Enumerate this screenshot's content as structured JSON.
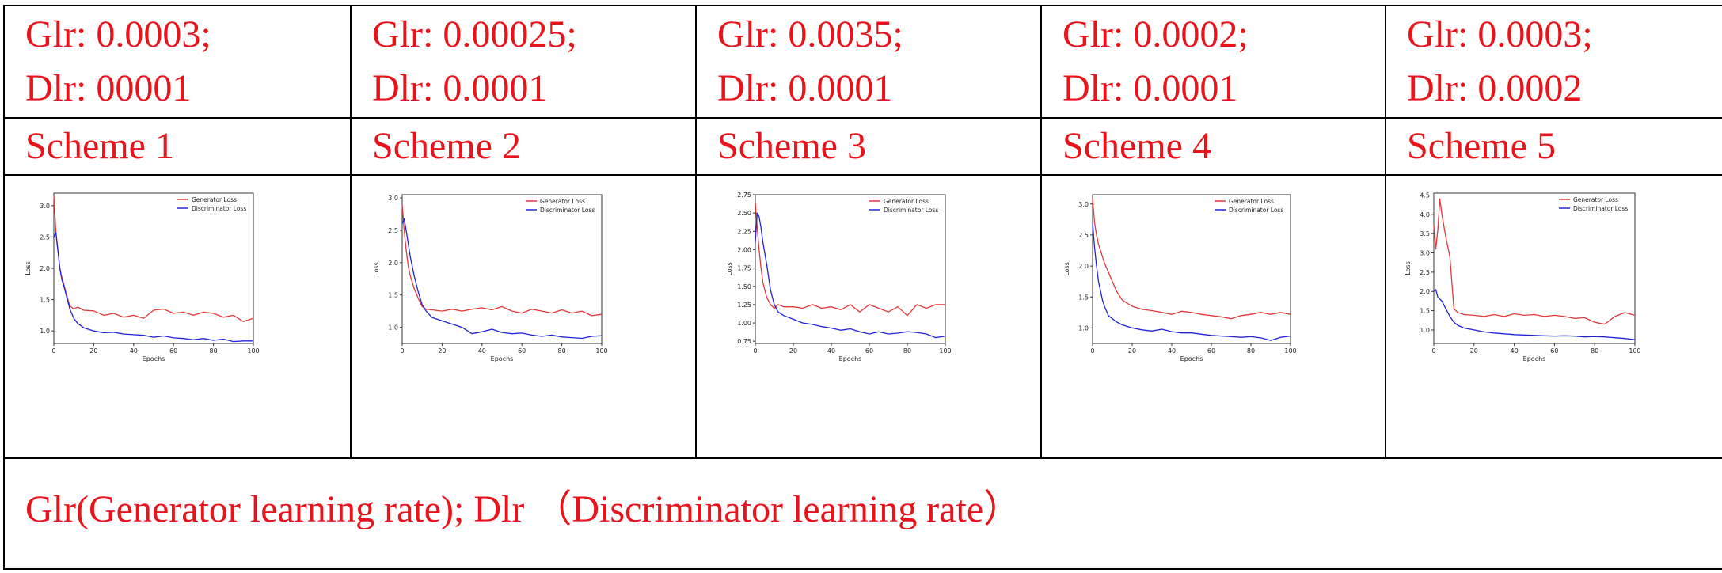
{
  "header_row": [
    {
      "glr": "Glr: 0.0003;",
      "dlr": "Dlr: 00001"
    },
    {
      "glr": "Glr: 0.00025;",
      "dlr": "Dlr: 0.0001"
    },
    {
      "glr": "Glr: 0.0035;",
      "dlr": "Dlr: 0.0001"
    },
    {
      "glr": "Glr: 0.0002;",
      "dlr": "Dlr: 0.0001"
    },
    {
      "glr": "Glr: 0.0003;",
      "dlr": "Dlr: 0.0002"
    }
  ],
  "scheme_row": [
    "Scheme 1",
    "Scheme 2",
    "Scheme 3",
    "Scheme 4",
    "Scheme 5"
  ],
  "footnote": "Glr(Generator learning rate); Dlr （Discriminator learning rate）",
  "colors": {
    "text": "#e8141c",
    "generator": "#e03a3a",
    "discriminator": "#2323d6",
    "grid_line": "#000000"
  },
  "chart_data": [
    {
      "type": "line",
      "title": "",
      "xlabel": "Epochs",
      "ylabel": "Loss",
      "xlim": [
        0,
        100
      ],
      "ylim": [
        0.8,
        3.2
      ],
      "xticks": [
        0,
        20,
        40,
        60,
        80,
        100
      ],
      "yticks": [
        1.0,
        1.5,
        2.0,
        2.5,
        3.0
      ],
      "ytick_labels": [
        "1.0",
        "1.5",
        "2.0",
        "2.5",
        "3.0"
      ],
      "x": [
        0,
        1,
        2,
        3,
        4,
        5,
        6,
        8,
        10,
        12,
        15,
        20,
        25,
        30,
        35,
        40,
        45,
        50,
        55,
        60,
        65,
        70,
        75,
        80,
        85,
        90,
        95,
        100
      ],
      "series": [
        {
          "name": "Generator Loss",
          "color": "#e03a3a",
          "values": [
            3.15,
            2.6,
            2.3,
            2.0,
            1.85,
            1.75,
            1.62,
            1.4,
            1.35,
            1.38,
            1.33,
            1.32,
            1.25,
            1.28,
            1.22,
            1.25,
            1.2,
            1.33,
            1.35,
            1.28,
            1.3,
            1.25,
            1.3,
            1.28,
            1.22,
            1.25,
            1.15,
            1.2
          ]
        },
        {
          "name": "Discriminator Loss",
          "color": "#2323d6",
          "values": [
            2.5,
            2.57,
            2.3,
            2.0,
            1.82,
            1.72,
            1.6,
            1.35,
            1.2,
            1.12,
            1.05,
            1.0,
            0.97,
            0.98,
            0.95,
            0.94,
            0.93,
            0.9,
            0.92,
            0.89,
            0.88,
            0.86,
            0.88,
            0.85,
            0.87,
            0.83,
            0.84,
            0.84
          ]
        }
      ]
    },
    {
      "type": "line",
      "title": "",
      "xlabel": "Epochs",
      "ylabel": "Loss",
      "xlim": [
        0,
        100
      ],
      "ylim": [
        0.75,
        3.05
      ],
      "xticks": [
        0,
        20,
        40,
        60,
        80,
        100
      ],
      "yticks": [
        1.0,
        1.5,
        2.0,
        2.5,
        3.0
      ],
      "ytick_labels": [
        "1.0",
        "1.5",
        "2.0",
        "2.5",
        "3.0"
      ],
      "x": [
        0,
        1,
        2,
        3,
        4,
        5,
        6,
        8,
        10,
        12,
        15,
        20,
        25,
        30,
        35,
        40,
        45,
        50,
        55,
        60,
        65,
        70,
        75,
        80,
        85,
        90,
        95,
        100
      ],
      "series": [
        {
          "name": "Generator Loss",
          "color": "#e03a3a",
          "values": [
            2.9,
            2.5,
            2.2,
            1.95,
            1.8,
            1.7,
            1.6,
            1.45,
            1.32,
            1.28,
            1.27,
            1.25,
            1.28,
            1.25,
            1.28,
            1.3,
            1.27,
            1.32,
            1.25,
            1.22,
            1.28,
            1.25,
            1.22,
            1.27,
            1.22,
            1.25,
            1.18,
            1.2
          ]
        },
        {
          "name": "Discriminator Loss",
          "color": "#2323d6",
          "values": [
            2.6,
            2.68,
            2.5,
            2.3,
            2.1,
            1.95,
            1.8,
            1.55,
            1.35,
            1.25,
            1.15,
            1.1,
            1.05,
            1.0,
            0.9,
            0.93,
            0.97,
            0.92,
            0.9,
            0.91,
            0.88,
            0.86,
            0.88,
            0.85,
            0.84,
            0.83,
            0.86,
            0.87
          ]
        }
      ]
    },
    {
      "type": "line",
      "title": "",
      "xlabel": "Epochs",
      "ylabel": "Loss",
      "xlim": [
        0,
        100
      ],
      "ylim": [
        0.72,
        2.75
      ],
      "xticks": [
        0,
        20,
        40,
        60,
        80,
        100
      ],
      "yticks": [
        0.75,
        1.0,
        1.25,
        1.5,
        1.75,
        2.0,
        2.25,
        2.5,
        2.75
      ],
      "ytick_labels": [
        "0.75",
        "1.00",
        "1.25",
        "1.50",
        "1.75",
        "2.00",
        "2.25",
        "2.50",
        "2.75"
      ],
      "x": [
        0,
        1,
        2,
        3,
        4,
        5,
        6,
        8,
        10,
        12,
        15,
        20,
        25,
        30,
        35,
        40,
        45,
        50,
        55,
        60,
        65,
        70,
        75,
        80,
        85,
        90,
        95,
        100
      ],
      "series": [
        {
          "name": "Generator Loss",
          "color": "#e03a3a",
          "values": [
            2.65,
            2.3,
            2.0,
            1.75,
            1.55,
            1.45,
            1.35,
            1.25,
            1.2,
            1.25,
            1.22,
            1.22,
            1.2,
            1.25,
            1.2,
            1.22,
            1.18,
            1.25,
            1.15,
            1.25,
            1.2,
            1.15,
            1.22,
            1.1,
            1.25,
            1.2,
            1.25,
            1.25
          ]
        },
        {
          "name": "Discriminator Loss",
          "color": "#2323d6",
          "values": [
            2.1,
            2.5,
            2.45,
            2.3,
            2.1,
            1.95,
            1.8,
            1.45,
            1.25,
            1.15,
            1.1,
            1.05,
            1.0,
            0.98,
            0.95,
            0.93,
            0.9,
            0.92,
            0.88,
            0.85,
            0.88,
            0.85,
            0.86,
            0.88,
            0.87,
            0.85,
            0.8,
            0.82
          ]
        }
      ]
    },
    {
      "type": "line",
      "title": "",
      "xlabel": "Epochs",
      "ylabel": "Loss",
      "xlim": [
        0,
        100
      ],
      "ylim": [
        0.75,
        3.15
      ],
      "xticks": [
        0,
        20,
        40,
        60,
        80,
        100
      ],
      "yticks": [
        1.0,
        1.5,
        2.0,
        2.5,
        3.0
      ],
      "ytick_labels": [
        "1.0",
        "1.5",
        "2.0",
        "2.5",
        "3.0"
      ],
      "x": [
        0,
        1,
        2,
        3,
        4,
        5,
        6,
        8,
        10,
        12,
        15,
        20,
        25,
        30,
        35,
        40,
        45,
        50,
        55,
        60,
        65,
        70,
        75,
        80,
        85,
        90,
        95,
        100
      ],
      "series": [
        {
          "name": "Generator Loss",
          "color": "#e03a3a",
          "values": [
            3.1,
            2.7,
            2.5,
            2.35,
            2.25,
            2.15,
            2.05,
            1.9,
            1.75,
            1.6,
            1.45,
            1.35,
            1.3,
            1.28,
            1.25,
            1.22,
            1.27,
            1.25,
            1.22,
            1.2,
            1.18,
            1.15,
            1.2,
            1.22,
            1.25,
            1.22,
            1.25,
            1.22
          ]
        },
        {
          "name": "Discriminator Loss",
          "color": "#2323d6",
          "values": [
            2.7,
            2.3,
            2.0,
            1.75,
            1.6,
            1.45,
            1.35,
            1.2,
            1.15,
            1.1,
            1.05,
            1.0,
            0.97,
            0.95,
            0.98,
            0.94,
            0.92,
            0.92,
            0.9,
            0.88,
            0.87,
            0.86,
            0.85,
            0.86,
            0.84,
            0.8,
            0.85,
            0.87
          ]
        }
      ]
    },
    {
      "type": "line",
      "title": "",
      "xlabel": "Epochs",
      "ylabel": "Loss",
      "xlim": [
        0,
        100
      ],
      "ylim": [
        0.65,
        4.55
      ],
      "xticks": [
        0,
        20,
        40,
        60,
        80,
        100
      ],
      "yticks": [
        1.0,
        1.5,
        2.0,
        2.5,
        3.0,
        3.5,
        4.0,
        4.5
      ],
      "ytick_labels": [
        "1.0",
        "1.5",
        "2.0",
        "2.5",
        "3.0",
        "3.5",
        "4.0",
        "4.5"
      ],
      "x": [
        0,
        1,
        2,
        3,
        4,
        5,
        6,
        8,
        10,
        12,
        15,
        20,
        25,
        30,
        35,
        40,
        45,
        50,
        55,
        60,
        65,
        70,
        75,
        80,
        85,
        90,
        95,
        100
      ],
      "series": [
        {
          "name": "Generator Loss",
          "color": "#e03a3a",
          "values": [
            3.7,
            3.1,
            3.6,
            4.4,
            4.0,
            3.7,
            3.4,
            2.9,
            1.55,
            1.45,
            1.4,
            1.38,
            1.35,
            1.4,
            1.35,
            1.42,
            1.38,
            1.4,
            1.35,
            1.38,
            1.35,
            1.3,
            1.32,
            1.2,
            1.15,
            1.35,
            1.45,
            1.38
          ]
        },
        {
          "name": "Discriminator Loss",
          "color": "#2323d6",
          "values": [
            2.0,
            2.05,
            1.85,
            1.8,
            1.75,
            1.65,
            1.55,
            1.35,
            1.2,
            1.12,
            1.05,
            1.0,
            0.95,
            0.92,
            0.9,
            0.88,
            0.87,
            0.86,
            0.85,
            0.84,
            0.85,
            0.84,
            0.82,
            0.83,
            0.82,
            0.8,
            0.78,
            0.75
          ]
        }
      ]
    }
  ]
}
